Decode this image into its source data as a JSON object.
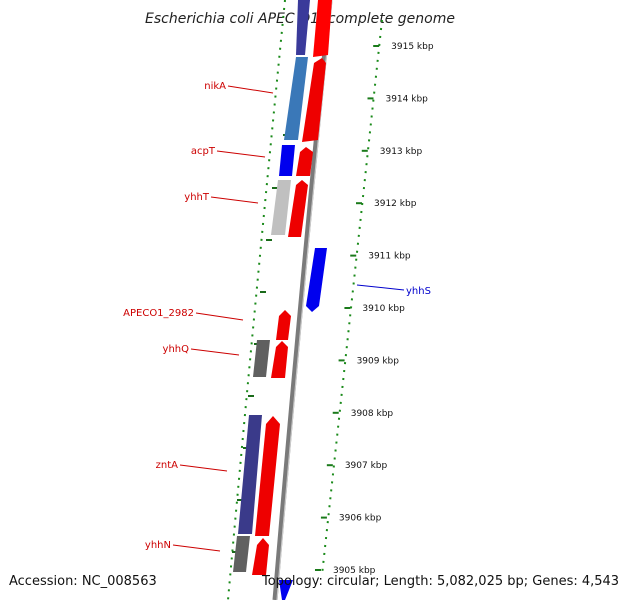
{
  "header": {
    "title": "Escherichia coli APEC O1, complete genome"
  },
  "footer": {
    "accession": "Accession: NC_008563",
    "summary": "Topology: circular; Length: 5,082,025 bp; Genes: 4,543"
  },
  "scale": {
    "unit": "kbp",
    "ticks": [
      "3915 kbp",
      "3914 kbp",
      "3913 kbp",
      "3912 kbp",
      "3911 kbp",
      "3910 kbp",
      "3909 kbp",
      "3908 kbp",
      "3907 kbp",
      "3906 kbp",
      "3905 kbp"
    ]
  },
  "gene_labels": [
    {
      "name": "nikA",
      "color": "#cc0000"
    },
    {
      "name": "acpT",
      "color": "#cc0000"
    },
    {
      "name": "yhhT",
      "color": "#cc0000"
    },
    {
      "name": "yhhS",
      "color": "#0000cc"
    },
    {
      "name": "APECO1_2982",
      "color": "#cc0000"
    },
    {
      "name": "yhhQ",
      "color": "#cc0000"
    },
    {
      "name": "zntA",
      "color": "#cc0000"
    },
    {
      "name": "yhhN",
      "color": "#cc0000"
    }
  ],
  "colors": {
    "cds_forward": "#ff0000",
    "cds_reverse": "#0000ff",
    "backbone": "#808080",
    "tick": "#1a7a1a"
  }
}
